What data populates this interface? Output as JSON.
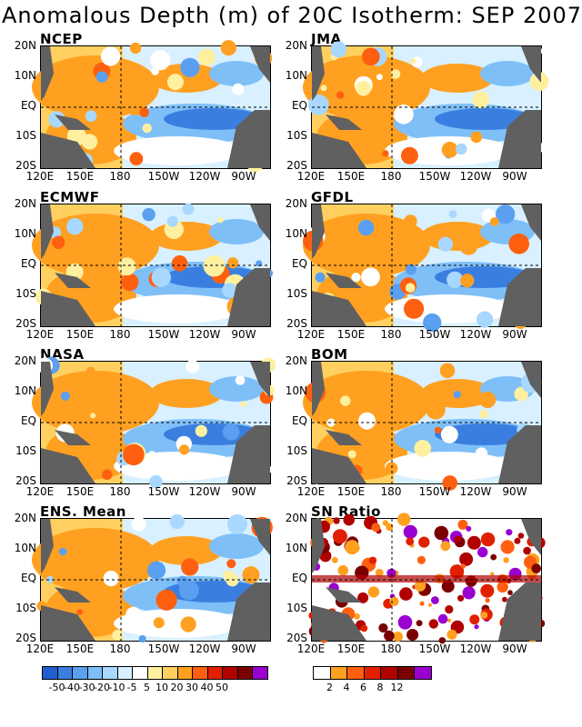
{
  "title": "Anomalous Depth (m) of 20C Isotherm: SEP 2007",
  "lat_labels": [
    "20N",
    "10N",
    "EQ",
    "10S",
    "20S"
  ],
  "lon_labels": [
    "120E",
    "150E",
    "180",
    "150W",
    "120W",
    "90W"
  ],
  "panels": [
    {
      "title": "NCEP",
      "kind": "anom"
    },
    {
      "title": "JMA",
      "kind": "anom"
    },
    {
      "title": "ECMWF",
      "kind": "anom"
    },
    {
      "title": "GFDL",
      "kind": "anom"
    },
    {
      "title": "NASA",
      "kind": "anom"
    },
    {
      "title": "BOM",
      "kind": "anom"
    },
    {
      "title": "ENS. Mean",
      "kind": "anom"
    },
    {
      "title": "SN Ratio",
      "kind": "snr"
    }
  ],
  "anomaly_colorbar": {
    "colors": [
      "#1f5fd0",
      "#3a7fe0",
      "#5a9ff0",
      "#7fbff8",
      "#a8d8ff",
      "#d8f0ff",
      "#ffffff",
      "#fff0a0",
      "#ffd060",
      "#ffa020",
      "#ff6010",
      "#e02000",
      "#b00000",
      "#7a0000",
      "#9a00d0"
    ],
    "labels": [
      "-50",
      "-40",
      "-30",
      "-20",
      "-10",
      "-5",
      "5",
      "10",
      "20",
      "30",
      "40",
      "50"
    ]
  },
  "snr_colorbar": {
    "colors": [
      "#ffffff",
      "#ffa020",
      "#ff6010",
      "#e02000",
      "#b00000",
      "#7a0000",
      "#9a00d0"
    ],
    "labels": [
      "2",
      "4",
      "6",
      "8",
      "12"
    ]
  },
  "land_color": "#606060"
}
